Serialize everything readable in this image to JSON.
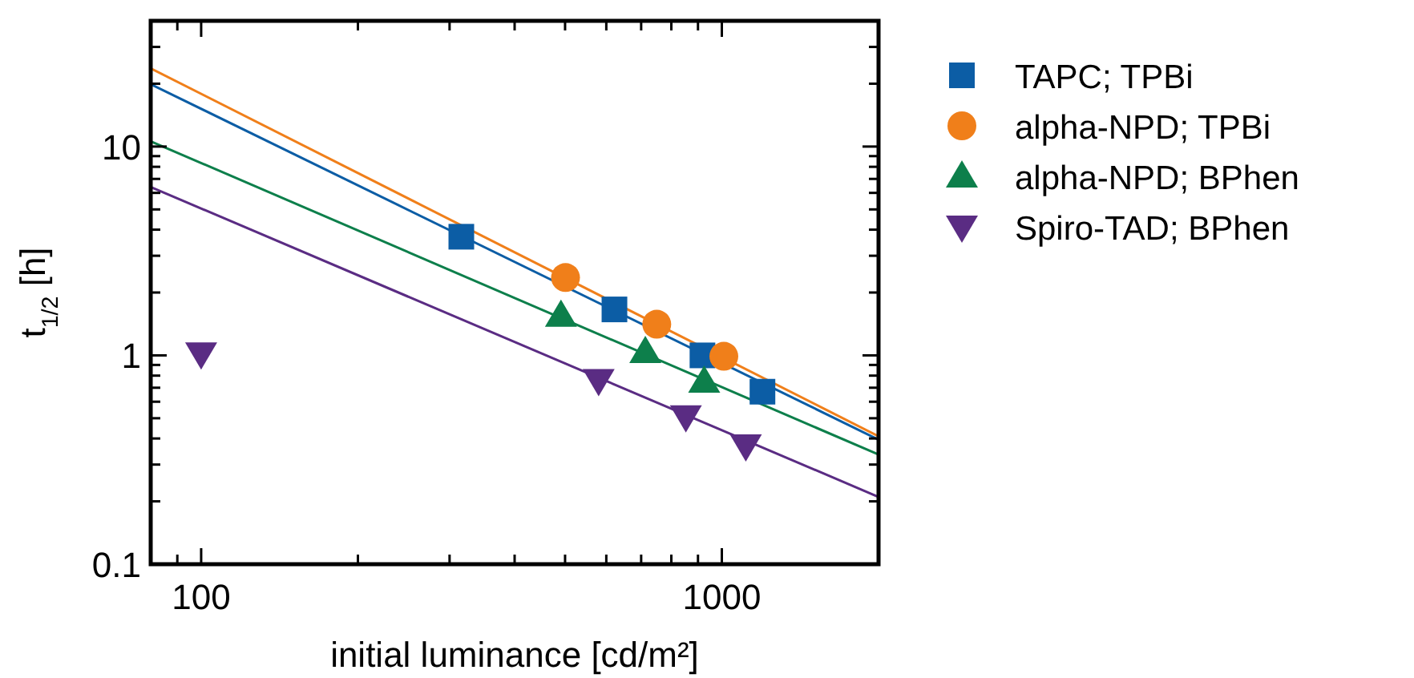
{
  "chart_data": {
    "type": "scatter",
    "xlabel": "initial luminance [cd/m²]",
    "ylabel": "t$_{1/2}$ [h]",
    "log": "xy",
    "xlim": [
      80,
      2000
    ],
    "ylim": [
      0.1,
      40
    ],
    "xticks": [
      {
        "value": 90,
        "label": null
      },
      100,
      {
        "value": 200,
        "label": null
      },
      {
        "value": 300,
        "label": null
      },
      {
        "value": 400,
        "label": null
      },
      {
        "value": 500,
        "label": null
      },
      {
        "value": 600,
        "label": null
      },
      {
        "value": 700,
        "label": null
      },
      {
        "value": 800,
        "label": null
      },
      {
        "value": 900,
        "label": null
      },
      1000,
      {
        "value": 2000,
        "label": null
      }
    ],
    "yticks": [
      0.1,
      {
        "value": 0.2,
        "label": null
      },
      {
        "value": 0.3,
        "label": null
      },
      {
        "value": 0.4,
        "label": null
      },
      {
        "value": 0.5,
        "label": null
      },
      {
        "value": 0.6,
        "label": null
      },
      {
        "value": 0.7,
        "label": null
      },
      {
        "value": 0.8,
        "label": null
      },
      {
        "value": 0.9,
        "label": null
      },
      1,
      {
        "value": 2,
        "label": null
      },
      {
        "value": 3,
        "label": null
      },
      {
        "value": 4,
        "label": null
      },
      {
        "value": 5,
        "label": null
      },
      {
        "value": 6,
        "label": null
      },
      {
        "value": 7,
        "label": null
      },
      {
        "value": 8,
        "label": null
      },
      {
        "value": 9,
        "label": null
      },
      10,
      {
        "value": 20,
        "label": null
      },
      {
        "value": 30,
        "label": null
      }
    ],
    "grid": false,
    "legend": "right",
    "series": [
      {
        "type": "line",
        "color": "#f07f1a",
        "x": [
          80,
          2000
        ],
        "values": [
          23.7,
          0.41
        ]
      },
      {
        "type": "line",
        "color": "#0c5da5",
        "x": [
          80,
          2000
        ],
        "values": [
          19.9,
          0.395
        ]
      },
      {
        "type": "line",
        "color": "#0d7f4b",
        "x": [
          80,
          2000
        ],
        "values": [
          10.6,
          0.335
        ]
      },
      {
        "type": "line",
        "color": "#5a2c83",
        "x": [
          80,
          2000
        ],
        "values": [
          6.4,
          0.21
        ]
      },
      {
        "name": "TAPC; TPBi",
        "type": "scatter",
        "marker": "square",
        "color": "#0c5da5",
        "x": [
          316,
          622,
          918,
          1197
        ],
        "values": [
          3.7,
          1.66,
          1.0,
          0.67
        ]
      },
      {
        "name": "alpha-NPD; TPBi",
        "type": "scatter",
        "marker": "circle",
        "color": "#f07f1a",
        "x": [
          501,
          750,
          1009
        ],
        "values": [
          2.36,
          1.41,
          0.99
        ]
      },
      {
        "name": "alpha-NPD; BPhen",
        "type": "scatter",
        "marker": "triangle",
        "color": "#0d7f4b",
        "x": [
          491,
          713,
          925
        ],
        "values": [
          1.55,
          1.04,
          0.75
        ]
      },
      {
        "name": "Spiro-TAD; BPhen",
        "type": "scatter",
        "marker": "triangle-down",
        "color": "#5a2c83",
        "x": [
          100,
          580,
          853,
          1112
        ],
        "values": [
          1.02,
          0.76,
          0.51,
          0.37
        ]
      }
    ]
  }
}
